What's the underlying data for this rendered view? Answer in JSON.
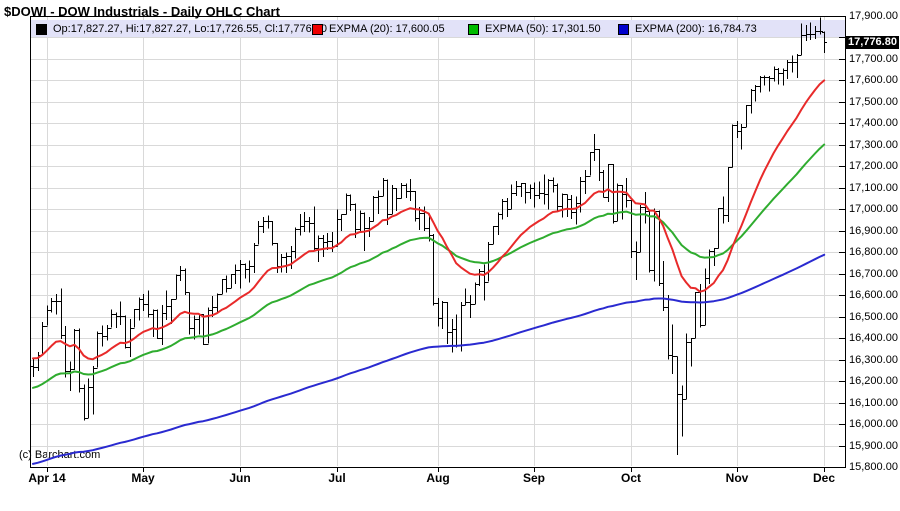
{
  "title": "$DOWI - DOW Industrials - Daily OHLC Chart",
  "copyright": "(c) Barchart.com",
  "price_tag": {
    "label": "17,776.80",
    "value": 17776.8,
    "bg": "#000000",
    "fg": "#FFFFFF"
  },
  "legend": {
    "band_color": "#E2E2F8",
    "items": [
      {
        "name": "ohlc",
        "swatch": "#000000",
        "label": "Op:17,827.27, Hi:17,827.27, Lo:17,726.55, Cl:17,776.80"
      },
      {
        "name": "expma-20",
        "swatch": "#EE0000",
        "label": "EXPMA (20): 17,600.05"
      },
      {
        "name": "expma-50",
        "swatch": "#00BB00",
        "label": "EXPMA (50): 17,301.50"
      },
      {
        "name": "expma-200",
        "swatch": "#0000CC",
        "label": "EXPMA (200): 16,784.73"
      }
    ]
  },
  "y_axis": {
    "ticks": [
      {
        "v": 17900,
        "label": "17,900.00"
      },
      {
        "v": 17700,
        "label": "17,700.00"
      },
      {
        "v": 17600,
        "label": "17,600.00"
      },
      {
        "v": 17500,
        "label": "17,500.00"
      },
      {
        "v": 17400,
        "label": "17,400.00"
      },
      {
        "v": 17300,
        "label": "17,300.00"
      },
      {
        "v": 17200,
        "label": "17,200.00"
      },
      {
        "v": 17100,
        "label": "17,100.00"
      },
      {
        "v": 17000,
        "label": "17,000.00"
      },
      {
        "v": 16900,
        "label": "16,900.00"
      },
      {
        "v": 16800,
        "label": "16,800.00"
      },
      {
        "v": 16700,
        "label": "16,700.00"
      },
      {
        "v": 16600,
        "label": "16,600.00"
      },
      {
        "v": 16500,
        "label": "16,500.00"
      },
      {
        "v": 16400,
        "label": "16,400.00"
      },
      {
        "v": 16300,
        "label": "16,300.00"
      },
      {
        "v": 16200,
        "label": "16,200.00"
      },
      {
        "v": 16100,
        "label": "16,100.00"
      },
      {
        "v": 16000,
        "label": "16,000.00"
      },
      {
        "v": 15900,
        "label": "15,900.00"
      },
      {
        "v": 15800,
        "label": "15,800.00"
      }
    ]
  },
  "x_axis": {
    "months": [
      {
        "label": "Apr 14",
        "i": 3
      },
      {
        "label": "May",
        "i": 24
      },
      {
        "label": "Jun",
        "i": 45
      },
      {
        "label": "Jul",
        "i": 66
      },
      {
        "label": "Aug",
        "i": 88
      },
      {
        "label": "Sep",
        "i": 109
      },
      {
        "label": "Oct",
        "i": 130
      },
      {
        "label": "Nov",
        "i": 153
      },
      {
        "label": "Dec",
        "i": 172
      }
    ]
  },
  "chart_data": {
    "type": "ohlc",
    "symbol": "$DOWI",
    "timeframe": "Daily",
    "ylim": [
      15800,
      17900
    ],
    "grid": true,
    "last_bar": {
      "open": 17827.27,
      "high": 17827.27,
      "low": 17726.55,
      "close": 17776.8
    },
    "moving_averages": [
      {
        "name": "EXPMA (20)",
        "period": 20,
        "value": 17600.05,
        "seed": 16310,
        "color": "#E82A2A"
      },
      {
        "name": "EXPMA (50)",
        "period": 50,
        "value": 17301.5,
        "seed": 16165,
        "color": "#2FAC2F"
      },
      {
        "name": "EXPMA (200)",
        "period": 200,
        "value": 16784.73,
        "seed": 15810,
        "color": "#2A2AD0"
      }
    ],
    "bars": [
      [
        16269,
        16310,
        16220,
        16264
      ],
      [
        16264,
        16336,
        16248,
        16323
      ],
      [
        16323,
        16476,
        16323,
        16458
      ],
      [
        16458,
        16553,
        16458,
        16533
      ],
      [
        16533,
        16588,
        16520,
        16573
      ],
      [
        16573,
        16605,
        16510,
        16572
      ],
      [
        16572,
        16631,
        16397,
        16413
      ],
      [
        16413,
        16456,
        16216,
        16246
      ],
      [
        16246,
        16292,
        16155,
        16256
      ],
      [
        16256,
        16442,
        16251,
        16437
      ],
      [
        16437,
        16446,
        16147,
        16170
      ],
      [
        16170,
        16183,
        16016,
        16027
      ],
      [
        16027,
        16212,
        16027,
        16173
      ],
      [
        16173,
        16270,
        16045,
        16263
      ],
      [
        16263,
        16431,
        16263,
        16425
      ],
      [
        16425,
        16460,
        16361,
        16409
      ],
      [
        16409,
        16461,
        16388,
        16449
      ],
      [
        16449,
        16534,
        16449,
        16514
      ],
      [
        16514,
        16520,
        16448,
        16502
      ],
      [
        16502,
        16571,
        16462,
        16502
      ],
      [
        16502,
        16506,
        16352,
        16361
      ],
      [
        16361,
        16489,
        16313,
        16449
      ],
      [
        16449,
        16535,
        16449,
        16535
      ],
      [
        16535,
        16589,
        16483,
        16581
      ],
      [
        16581,
        16605,
        16526,
        16559
      ],
      [
        16559,
        16621,
        16497,
        16513
      ],
      [
        16513,
        16534,
        16406,
        16531
      ],
      [
        16531,
        16534,
        16396,
        16401
      ],
      [
        16401,
        16555,
        16369,
        16519
      ],
      [
        16519,
        16622,
        16485,
        16551
      ],
      [
        16551,
        16583,
        16465,
        16583
      ],
      [
        16583,
        16696,
        16583,
        16695
      ],
      [
        16695,
        16735,
        16666,
        16715
      ],
      [
        16715,
        16725,
        16601,
        16613
      ],
      [
        16613,
        16613,
        16418,
        16447
      ],
      [
        16447,
        16506,
        16393,
        16491
      ],
      [
        16491,
        16512,
        16416,
        16512
      ],
      [
        16512,
        16512,
        16367,
        16374
      ],
      [
        16374,
        16543,
        16374,
        16533
      ],
      [
        16533,
        16597,
        16498,
        16543
      ],
      [
        16543,
        16607,
        16522,
        16606
      ],
      [
        16606,
        16676,
        16606,
        16676
      ],
      [
        16676,
        16692,
        16612,
        16634
      ],
      [
        16634,
        16699,
        16634,
        16699
      ],
      [
        16699,
        16744,
        16651,
        16717
      ],
      [
        16717,
        16763,
        16632,
        16744
      ],
      [
        16744,
        16747,
        16677,
        16722
      ],
      [
        16722,
        16762,
        16660,
        16737
      ],
      [
        16737,
        16842,
        16703,
        16836
      ],
      [
        16836,
        16945,
        16836,
        16924
      ],
      [
        16924,
        16963,
        16890,
        16944
      ],
      [
        16944,
        16971,
        16910,
        16946
      ],
      [
        16946,
        16946,
        16832,
        16844
      ],
      [
        16844,
        16844,
        16703,
        16734
      ],
      [
        16734,
        16792,
        16705,
        16776
      ],
      [
        16776,
        16798,
        16703,
        16781
      ],
      [
        16781,
        16830,
        16721,
        16808
      ],
      [
        16808,
        16915,
        16770,
        16906
      ],
      [
        16906,
        16978,
        16879,
        16921
      ],
      [
        16921,
        16988,
        16894,
        16947
      ],
      [
        16947,
        16963,
        16893,
        16937
      ],
      [
        16937,
        17012,
        16803,
        16818
      ],
      [
        16818,
        16878,
        16755,
        16867
      ],
      [
        16867,
        16880,
        16777,
        16846
      ],
      [
        16846,
        16889,
        16810,
        16852
      ],
      [
        16852,
        16894,
        16801,
        16827
      ],
      [
        16827,
        16998,
        16827,
        16956
      ],
      [
        16956,
        16976,
        16900,
        16976
      ],
      [
        16976,
        17074,
        16976,
        17068
      ],
      [
        17068,
        17068,
        16993,
        17024
      ],
      [
        17024,
        17028,
        16867,
        16907
      ],
      [
        16907,
        16995,
        16890,
        16985
      ],
      [
        16985,
        16985,
        16805,
        16915
      ],
      [
        16915,
        16963,
        16870,
        16944
      ],
      [
        16944,
        17062,
        16944,
        17055
      ],
      [
        17055,
        17087,
        16979,
        17061
      ],
      [
        17061,
        17145,
        17061,
        17138
      ],
      [
        17138,
        17138,
        16927,
        16977
      ],
      [
        16977,
        17114,
        16977,
        17100
      ],
      [
        17100,
        17100,
        16993,
        17051
      ],
      [
        17051,
        17123,
        17051,
        17114
      ],
      [
        17114,
        17121,
        17052,
        17086
      ],
      [
        17086,
        17140,
        17038,
        17084
      ],
      [
        17084,
        17084,
        16942,
        16961
      ],
      [
        16961,
        17011,
        16903,
        16983
      ],
      [
        16983,
        17012,
        16898,
        16912
      ],
      [
        16912,
        16980,
        16849,
        16880
      ],
      [
        16880,
        16885,
        16551,
        16563
      ],
      [
        16563,
        16588,
        16454,
        16493
      ],
      [
        16493,
        16573,
        16443,
        16569
      ],
      [
        16569,
        16569,
        16372,
        16429
      ],
      [
        16429,
        16489,
        16333,
        16443
      ],
      [
        16443,
        16511,
        16356,
        16368
      ],
      [
        16368,
        16569,
        16337,
        16554
      ],
      [
        16554,
        16631,
        16554,
        16570
      ],
      [
        16570,
        16600,
        16494,
        16560
      ],
      [
        16560,
        16659,
        16560,
        16652
      ],
      [
        16652,
        16721,
        16642,
        16714
      ],
      [
        16714,
        16742,
        16575,
        16663
      ],
      [
        16663,
        16848,
        16663,
        16839
      ],
      [
        16839,
        16923,
        16839,
        16920
      ],
      [
        16920,
        16984,
        16880,
        16979
      ],
      [
        16979,
        17049,
        16953,
        17039
      ],
      [
        17039,
        17052,
        16965,
        17001
      ],
      [
        17001,
        17115,
        17001,
        17077
      ],
      [
        17077,
        17131,
        17062,
        17107
      ],
      [
        17107,
        17122,
        17057,
        17122
      ],
      [
        17122,
        17122,
        17026,
        17079
      ],
      [
        17079,
        17116,
        17048,
        17098
      ],
      [
        17098,
        17125,
        17008,
        17068
      ],
      [
        17068,
        17129,
        17047,
        17078
      ],
      [
        17078,
        17161,
        17023,
        17070
      ],
      [
        17070,
        17141,
        16998,
        17137
      ],
      [
        17137,
        17147,
        17078,
        17111
      ],
      [
        17111,
        17121,
        16994,
        17014
      ],
      [
        17014,
        17073,
        16961,
        17069
      ],
      [
        17069,
        17069,
        16963,
        17049
      ],
      [
        17049,
        17066,
        16955,
        16988
      ],
      [
        16988,
        17060,
        16928,
        17031
      ],
      [
        17031,
        17151,
        16984,
        17132
      ],
      [
        17132,
        17183,
        17072,
        17157
      ],
      [
        17157,
        17266,
        17157,
        17266
      ],
      [
        17266,
        17350,
        17224,
        17280
      ],
      [
        17280,
        17280,
        17132,
        17173
      ],
      [
        17173,
        17183,
        17055,
        17056
      ],
      [
        17056,
        17211,
        17034,
        17210
      ],
      [
        17210,
        17210,
        16934,
        16946
      ],
      [
        16946,
        17121,
        16946,
        17113
      ],
      [
        17113,
        17113,
        16952,
        17071
      ],
      [
        17071,
        17145,
        17009,
        17043
      ],
      [
        17043,
        17043,
        16774,
        16805
      ],
      [
        16805,
        16850,
        16670,
        16801
      ],
      [
        16801,
        17020,
        16801,
        17010
      ],
      [
        17010,
        17080,
        16934,
        16992
      ],
      [
        16992,
        16992,
        16705,
        16719
      ],
      [
        16719,
        17003,
        16663,
        16994
      ],
      [
        16994,
        16995,
        16642,
        16659
      ],
      [
        16659,
        16759,
        16526,
        16544
      ],
      [
        16544,
        16602,
        16301,
        16321
      ],
      [
        16321,
        16463,
        16234,
        16315
      ],
      [
        16315,
        16315,
        15855,
        16142
      ],
      [
        16142,
        16179,
        15942,
        16117
      ],
      [
        16117,
        16422,
        16117,
        16380
      ],
      [
        16380,
        16400,
        16269,
        16400
      ],
      [
        16400,
        16615,
        16400,
        16615
      ],
      [
        16615,
        16653,
        16450,
        16461
      ],
      [
        16461,
        16724,
        16461,
        16678
      ],
      [
        16678,
        16812,
        16652,
        16805
      ],
      [
        16805,
        16819,
        16735,
        16818
      ],
      [
        16818,
        17006,
        16818,
        17006
      ],
      [
        17006,
        17060,
        16934,
        16974
      ],
      [
        16974,
        17196,
        16940,
        17195
      ],
      [
        17195,
        17395,
        17195,
        17391
      ],
      [
        17391,
        17411,
        17332,
        17366
      ],
      [
        17366,
        17396,
        17279,
        17384
      ],
      [
        17384,
        17486,
        17384,
        17485
      ],
      [
        17485,
        17559,
        17445,
        17554
      ],
      [
        17554,
        17578,
        17502,
        17574
      ],
      [
        17574,
        17621,
        17544,
        17614
      ],
      [
        17614,
        17624,
        17576,
        17615
      ],
      [
        17615,
        17621,
        17548,
        17612
      ],
      [
        17612,
        17666,
        17594,
        17653
      ],
      [
        17653,
        17659,
        17580,
        17635
      ],
      [
        17635,
        17656,
        17576,
        17648
      ],
      [
        17648,
        17694,
        17607,
        17688
      ],
      [
        17688,
        17717,
        17636,
        17686
      ],
      [
        17686,
        17722,
        17611,
        17719
      ],
      [
        17719,
        17866,
        17719,
        17810
      ],
      [
        17810,
        17858,
        17783,
        17818
      ],
      [
        17818,
        17870,
        17789,
        17815
      ],
      [
        17815,
        17853,
        17792,
        17828
      ],
      [
        17828,
        17894,
        17813,
        17828
      ],
      [
        17827,
        17827,
        17727,
        17777
      ]
    ]
  }
}
